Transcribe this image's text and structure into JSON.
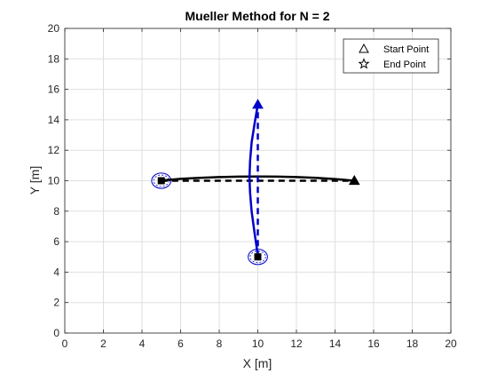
{
  "chart_data": {
    "type": "line",
    "title": "Mueller Method for N = 2",
    "xlabel": "X [m]",
    "ylabel": "Y [m]",
    "xlim": [
      0,
      20
    ],
    "ylim": [
      0,
      20
    ],
    "xticks": [
      0,
      2,
      4,
      6,
      8,
      10,
      12,
      14,
      16,
      18,
      20
    ],
    "yticks": [
      0,
      2,
      4,
      6,
      8,
      10,
      12,
      14,
      16,
      18,
      20
    ],
    "grid": true,
    "legend": {
      "placement": "top-right",
      "entries": [
        {
          "label": "Start Point",
          "marker": "triangle-icon"
        },
        {
          "label": "End Point",
          "marker": "star-icon"
        }
      ]
    },
    "series": [
      {
        "color": "#000000",
        "style": "solid",
        "x": [
          5.0,
          6.0,
          7.0,
          8.0,
          9.0,
          10.0,
          11.0,
          12.0,
          13.0,
          14.0,
          15.0
        ],
        "y": [
          10.02,
          10.12,
          10.19,
          10.24,
          10.27,
          10.28,
          10.27,
          10.24,
          10.19,
          10.11,
          10.0
        ]
      },
      {
        "color": "#000000",
        "style": "dashed",
        "x": [
          5,
          15
        ],
        "y": [
          10,
          10
        ]
      },
      {
        "color": "#0000cc",
        "style": "solid",
        "x": [
          10.0,
          9.84,
          9.68,
          9.6,
          9.57,
          9.6,
          9.68,
          9.84,
          10.0
        ],
        "y": [
          5.1,
          6.5,
          8.0,
          9.2,
          10.2,
          11.3,
          12.5,
          13.8,
          15.0
        ]
      },
      {
        "color": "#0000cc",
        "style": "dashed",
        "x": [
          10,
          10
        ],
        "y": [
          5,
          15
        ]
      }
    ],
    "start_points": [
      {
        "x": 15,
        "y": 10,
        "color": "#000000"
      },
      {
        "x": 10,
        "y": 15,
        "color": "#0000cc"
      }
    ],
    "end_points": [
      {
        "x": 5,
        "y": 10,
        "color": "#000000"
      },
      {
        "x": 10,
        "y": 5,
        "color": "#000000"
      }
    ],
    "target_circles": [
      {
        "x": 5,
        "y": 10,
        "radius": 0.5,
        "color": "#0000cc"
      },
      {
        "x": 10,
        "y": 5,
        "radius": 0.5,
        "color": "#0000cc"
      }
    ]
  }
}
